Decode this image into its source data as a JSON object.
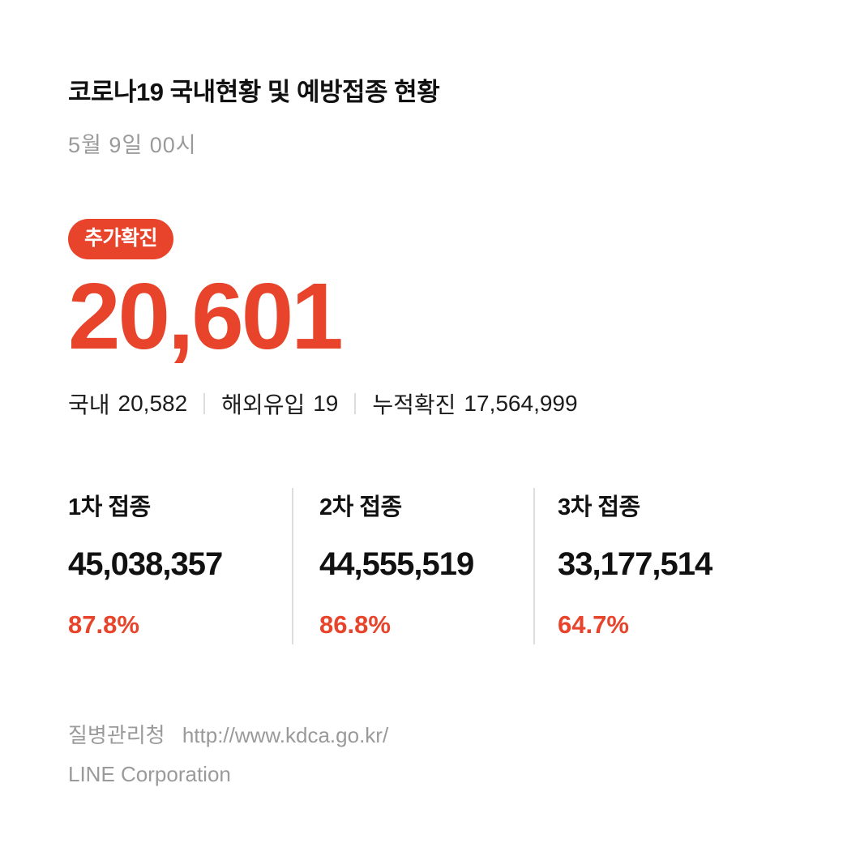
{
  "colors": {
    "accent": "#e8432b",
    "ink": "#111111",
    "muted": "#9a9a9a",
    "divider": "#dddddd"
  },
  "header": {
    "title": "코로나19 국내현황 및 예방접종 현황",
    "date": "5월 9일 00시"
  },
  "confirmed": {
    "badge_label": "추가확진",
    "count": "20,601",
    "breakdown": [
      {
        "label": "국내",
        "value": "20,582"
      },
      {
        "label": "해외유입",
        "value": "19"
      },
      {
        "label": "누적확진",
        "value": "17,564,999"
      }
    ]
  },
  "vaccination": {
    "columns": [
      {
        "label": "1차 접종",
        "count": "45,038,357",
        "percent": "87.8%"
      },
      {
        "label": "2차 접종",
        "count": "44,555,519",
        "percent": "86.8%"
      },
      {
        "label": "3차 접종",
        "count": "33,177,514",
        "percent": "64.7%"
      }
    ]
  },
  "footer": {
    "source": "질병관리청",
    "url": "http://www.kdca.go.kr/",
    "copyright": "LINE Corporation"
  }
}
